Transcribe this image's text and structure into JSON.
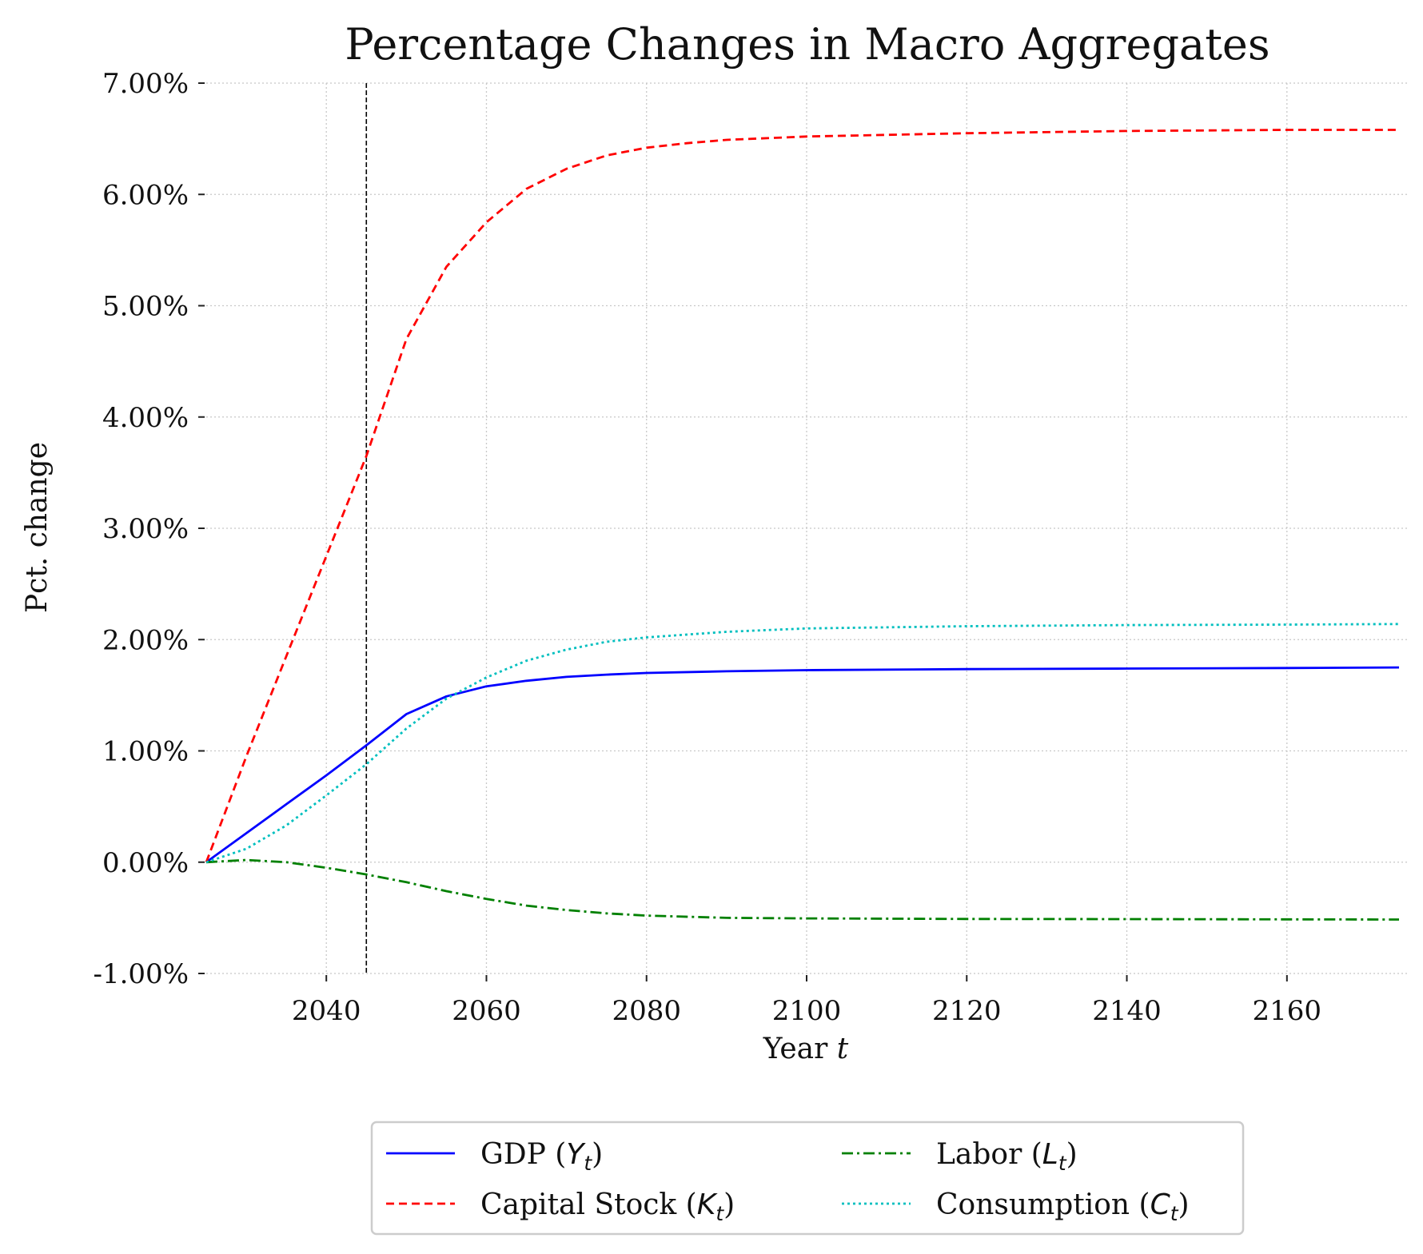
{
  "chart_data": {
    "type": "line",
    "title": "Percentage Changes in Macro Aggregates",
    "xlabel": "Year",
    "xlabel_var": "t",
    "ylabel": "Pct. change",
    "xlim": [
      2025,
      2175
    ],
    "ylim": [
      -1.0,
      7.0
    ],
    "x_ticks": [
      2040,
      2060,
      2080,
      2100,
      2120,
      2140,
      2160
    ],
    "y_ticks": [
      -1.0,
      0.0,
      1.0,
      2.0,
      3.0,
      4.0,
      5.0,
      6.0,
      7.0
    ],
    "y_tick_labels": [
      "-1.00%",
      "0.00%",
      "1.00%",
      "2.00%",
      "3.00%",
      "4.00%",
      "5.00%",
      "6.00%",
      "7.00%"
    ],
    "grid": true,
    "vline_x": 2045,
    "legend_position": "bottom-center",
    "legend_columns": 2,
    "series": [
      {
        "name": "GDP",
        "math_var": "Y",
        "color": "#0000ff",
        "dash": "solid",
        "x": [
          2025,
          2030,
          2035,
          2040,
          2045,
          2050,
          2055,
          2060,
          2065,
          2070,
          2075,
          2080,
          2090,
          2100,
          2120,
          2140,
          2160,
          2174
        ],
        "y": [
          0.0,
          0.26,
          0.52,
          0.78,
          1.05,
          1.33,
          1.49,
          1.58,
          1.63,
          1.665,
          1.685,
          1.7,
          1.715,
          1.725,
          1.735,
          1.74,
          1.745,
          1.75
        ]
      },
      {
        "name": "Capital Stock",
        "math_var": "K",
        "color": "#ff0000",
        "dash": "dashed",
        "x": [
          2025,
          2030,
          2035,
          2040,
          2045,
          2050,
          2055,
          2060,
          2065,
          2070,
          2075,
          2080,
          2085,
          2090,
          2100,
          2120,
          2140,
          2160,
          2174
        ],
        "y": [
          0.0,
          0.95,
          1.85,
          2.75,
          3.65,
          4.7,
          5.35,
          5.75,
          6.05,
          6.23,
          6.35,
          6.42,
          6.46,
          6.49,
          6.52,
          6.55,
          6.57,
          6.58,
          6.58
        ]
      },
      {
        "name": "Labor",
        "math_var": "L",
        "color": "#008000",
        "dash": "dashdot",
        "x": [
          2025,
          2030,
          2035,
          2040,
          2045,
          2050,
          2055,
          2060,
          2065,
          2070,
          2075,
          2080,
          2090,
          2100,
          2120,
          2140,
          2160,
          2174
        ],
        "y": [
          0.0,
          0.02,
          0.0,
          -0.05,
          -0.11,
          -0.18,
          -0.26,
          -0.33,
          -0.39,
          -0.43,
          -0.46,
          -0.48,
          -0.5,
          -0.505,
          -0.51,
          -0.512,
          -0.514,
          -0.515
        ]
      },
      {
        "name": "Consumption",
        "math_var": "C",
        "color": "#00bfbf",
        "dash": "dotted",
        "x": [
          2025,
          2030,
          2035,
          2040,
          2045,
          2050,
          2055,
          2060,
          2065,
          2070,
          2075,
          2080,
          2090,
          2100,
          2120,
          2140,
          2160,
          2174
        ],
        "y": [
          0.0,
          0.12,
          0.33,
          0.6,
          0.88,
          1.2,
          1.47,
          1.66,
          1.81,
          1.91,
          1.98,
          2.02,
          2.07,
          2.1,
          2.12,
          2.13,
          2.135,
          2.14
        ]
      }
    ]
  }
}
